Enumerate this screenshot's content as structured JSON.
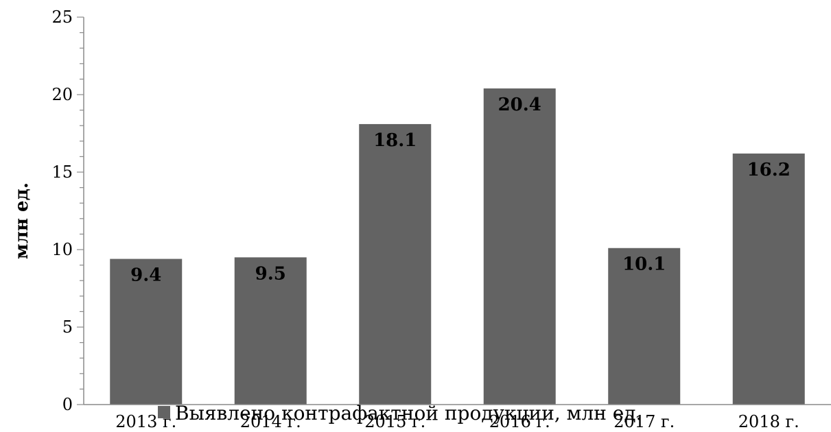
{
  "chart_data": {
    "type": "bar",
    "categories": [
      "2013 г.",
      "2014 г.",
      "2015 г.",
      "2016 г.",
      "2017 г.",
      "2018 г."
    ],
    "series": [
      {
        "name": "Выявлено контрафактной продукции, млн ед.",
        "values": [
          9.4,
          9.5,
          18.1,
          20.4,
          10.1,
          16.2
        ],
        "color": "#636363"
      }
    ],
    "data_labels": [
      "9.4",
      "9.5",
      "18.1",
      "20.4",
      "10.1",
      "16.2"
    ],
    "ylabel": "млн ед.",
    "ylim": [
      0,
      25
    ],
    "y_ticks": [
      0,
      5,
      10,
      15,
      20,
      25
    ],
    "y_tick_labels": [
      "0",
      "5",
      "10",
      "15",
      "20",
      "25"
    ],
    "grid": false,
    "legend_position": "bottom",
    "legend_label": "Выявлено контрафактной продукции, млн ед."
  }
}
